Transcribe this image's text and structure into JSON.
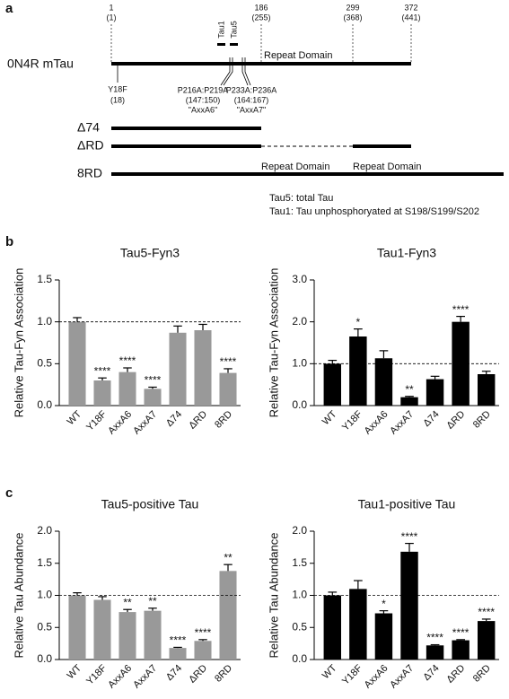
{
  "diagram": {
    "panel_labels": [
      "a",
      "b",
      "c"
    ],
    "positions": [
      {
        "top": "1",
        "bottom": "(1)"
      },
      {
        "top": "186",
        "bottom": "(255)"
      },
      {
        "top": "299",
        "bottom": "(368)"
      },
      {
        "top": "372",
        "bottom": "(441)"
      }
    ],
    "epitopes": [
      "Tau1",
      "Tau5"
    ],
    "repeat_domain": "Repeat Domain",
    "construct_name": "0N4R mTau",
    "mutations": [
      {
        "lines": [
          "Y18F",
          "(18)"
        ]
      },
      {
        "lines": [
          "P216A:P219A",
          "(147:150)",
          "\"AxxA6\""
        ]
      },
      {
        "lines": [
          "P233A:P236A",
          "(164:167)",
          "\"AxxA7\""
        ]
      }
    ],
    "constructs": [
      "Δ74",
      "ΔRD",
      "8RD"
    ],
    "legend": [
      "Tau5: total Tau",
      "Tau1: Tau unphosphoryated at S198/S199/S202"
    ]
  },
  "chart_data": [
    {
      "type": "bar",
      "title": "Tau5-Fyn3",
      "ylabel": "Relative Tau-Fyn Association",
      "color": "#999999",
      "categories": [
        "WT",
        "Y18F",
        "AxxA6",
        "AxxA7",
        "Δ74",
        "ΔRD",
        "8RD"
      ],
      "values": [
        1.0,
        0.3,
        0.4,
        0.2,
        0.87,
        0.9,
        0.39
      ],
      "errors": [
        0.05,
        0.03,
        0.05,
        0.02,
        0.08,
        0.07,
        0.05
      ],
      "annotations": [
        null,
        "****",
        "****",
        "****",
        null,
        null,
        "****"
      ],
      "reference_line": 1,
      "ylim": [
        0,
        1.5
      ],
      "yticks": [
        {
          "value": 0,
          "label": "0.0"
        },
        0.5,
        {
          "value": 1,
          "label": "1.0"
        },
        1.5
      ]
    },
    {
      "type": "bar",
      "title": "Tau1-Fyn3",
      "ylabel": "Relative Tau-Fyn Association",
      "color": "#000000",
      "categories": [
        "WT",
        "Y18F",
        "AxxA6",
        "AxxA7",
        "Δ74",
        "ΔRD",
        "8RD"
      ],
      "values": [
        1.0,
        1.65,
        1.13,
        0.2,
        0.63,
        2.0,
        0.75
      ],
      "errors": [
        0.08,
        0.18,
        0.18,
        0.02,
        0.07,
        0.13,
        0.07
      ],
      "annotations": [
        null,
        "*",
        null,
        "**",
        null,
        "****",
        null
      ],
      "reference_line": 1,
      "ylim": [
        0,
        3
      ],
      "yticks": [
        {
          "value": 0,
          "label": "0.0"
        },
        {
          "value": 1,
          "label": "1.0"
        },
        {
          "value": 2,
          "label": "2.0"
        },
        {
          "value": 3,
          "label": "3.0"
        }
      ]
    },
    {
      "type": "bar",
      "title": "Tau5-positive Tau",
      "ylabel": "Relative Tau Abundance",
      "color": "#999999",
      "categories": [
        "WT",
        "Y18F",
        "AxxA6",
        "AxxA7",
        "Δ74",
        "ΔRD",
        "8RD"
      ],
      "values": [
        1.0,
        0.93,
        0.74,
        0.76,
        0.18,
        0.29,
        1.38
      ],
      "errors": [
        0.04,
        0.05,
        0.04,
        0.04,
        0.01,
        0.02,
        0.1
      ],
      "annotations": [
        null,
        null,
        "**",
        "**",
        "****",
        "****",
        "**"
      ],
      "reference_line": 1,
      "ylim": [
        0,
        2
      ],
      "yticks": [
        {
          "value": 0,
          "label": "0.0"
        },
        0.5,
        {
          "value": 1,
          "label": "1.0"
        },
        1.5,
        {
          "value": 2,
          "label": "2.0"
        }
      ]
    },
    {
      "type": "bar",
      "title": "Tau1-positive Tau",
      "ylabel": "Relative Tau Abundance",
      "color": "#000000",
      "categories": [
        "WT",
        "Y18F",
        "AxxA6",
        "AxxA7",
        "Δ74",
        "ΔRD",
        "8RD"
      ],
      "values": [
        1.0,
        1.1,
        0.72,
        1.68,
        0.22,
        0.3,
        0.6
      ],
      "errors": [
        0.05,
        0.13,
        0.04,
        0.13,
        0.01,
        0.01,
        0.03
      ],
      "annotations": [
        null,
        null,
        "*",
        "****",
        "****",
        "****",
        "****"
      ],
      "reference_line": 1,
      "ylim": [
        0,
        2
      ],
      "yticks": [
        {
          "value": 0,
          "label": "0.0"
        },
        0.5,
        {
          "value": 1,
          "label": "1.0"
        },
        1.5,
        {
          "value": 2,
          "label": "2.0"
        }
      ]
    }
  ]
}
